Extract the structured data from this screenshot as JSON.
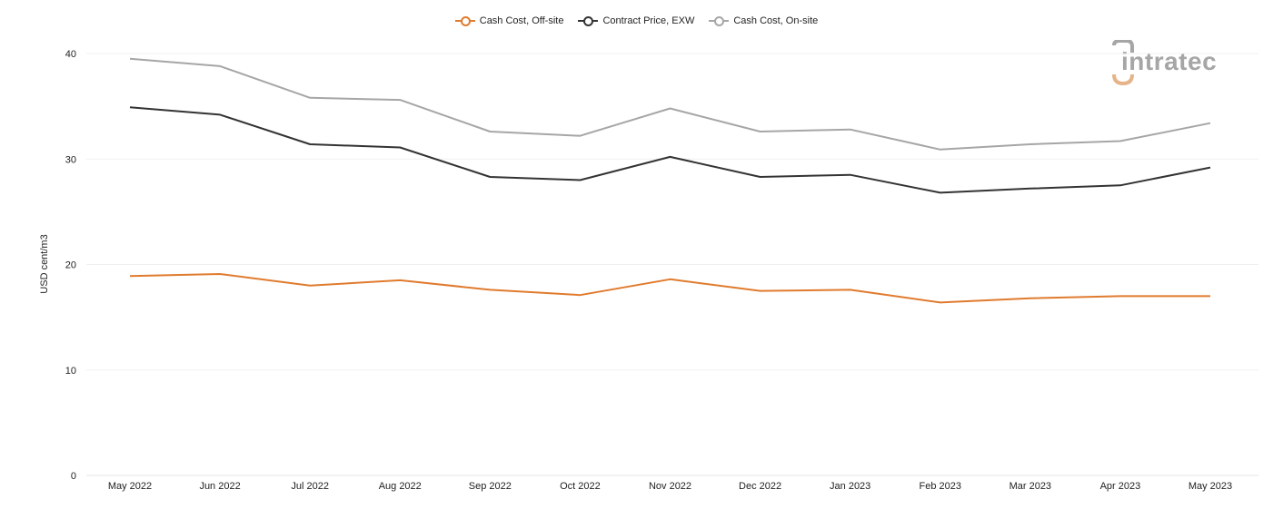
{
  "logo": {
    "text": "intratec"
  },
  "chart_data": {
    "type": "line",
    "title": "",
    "xlabel": "",
    "ylabel": "USD cent/m3",
    "ylim": [
      0,
      40
    ],
    "yticks": [
      "0",
      "10",
      "20",
      "30",
      "40"
    ],
    "grid": true,
    "legend_position": "top-center",
    "categories": [
      "May 2022",
      "Jun 2022",
      "Jul 2022",
      "Aug 2022",
      "Sep 2022",
      "Oct 2022",
      "Nov 2022",
      "Dec 2022",
      "Jan 2023",
      "Feb 2023",
      "Mar 2023",
      "Apr 2023",
      "May 2023"
    ],
    "series": [
      {
        "name": "Cash Cost, Off-site",
        "color": "#e07b2e",
        "values": [
          18.9,
          19.1,
          18.0,
          18.5,
          17.6,
          17.1,
          18.6,
          17.5,
          17.6,
          16.4,
          16.8,
          17.0,
          17.0
        ]
      },
      {
        "name": "Contract Price, EXW",
        "color": "#333333",
        "values": [
          34.9,
          34.2,
          31.4,
          31.1,
          28.3,
          28.0,
          30.2,
          28.3,
          28.5,
          26.8,
          27.2,
          27.5,
          29.2
        ]
      },
      {
        "name": "Cash Cost, On-site",
        "color": "#a6a6a6",
        "values": [
          39.5,
          38.8,
          35.8,
          35.6,
          32.6,
          32.2,
          34.8,
          32.6,
          32.8,
          30.9,
          31.4,
          31.7,
          33.4
        ]
      }
    ]
  }
}
